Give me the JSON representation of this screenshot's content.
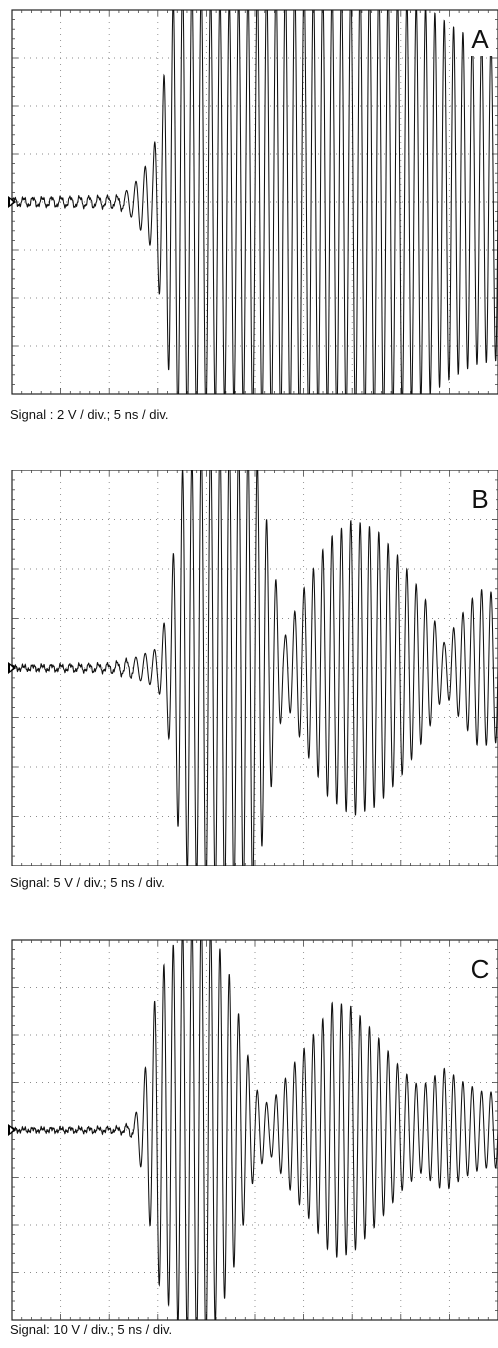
{
  "chart_data": [
    {
      "type": "line",
      "panel_label": "A",
      "caption": "Signal : 2 V / div.; 5 ns / div.",
      "grid": true,
      "divisions": {
        "x": 10,
        "y": 8
      },
      "xlim": [
        0,
        10
      ],
      "ylim": [
        -4,
        4
      ],
      "envelope": {
        "x": [
          0,
          2.2,
          2.5,
          2.9,
          3.1,
          3.3,
          3.5,
          3.7,
          4.0,
          4.5,
          5.0,
          5.5,
          6.0,
          6.5,
          7.0,
          7.5,
          8.0,
          8.5,
          9.0,
          9.5,
          10.0
        ],
        "amplitude_div": [
          0.08,
          0.12,
          0.35,
          1.0,
          2.4,
          4.2,
          4.6,
          4.6,
          4.4,
          4.2,
          4.5,
          4.6,
          4.6,
          4.4,
          4.5,
          4.6,
          4.3,
          4.1,
          3.7,
          3.4,
          3.3
        ]
      },
      "cycles_per_div": 5.2
    },
    {
      "type": "line",
      "panel_label": "B",
      "caption": "Signal: 5 V / div.; 5 ns / div.",
      "grid": true,
      "divisions": {
        "x": 10,
        "y": 8
      },
      "xlim": [
        0,
        10
      ],
      "ylim": [
        -4,
        4
      ],
      "envelope": {
        "x": [
          0,
          2.0,
          2.5,
          3.0,
          3.2,
          3.5,
          4.0,
          4.5,
          5.0,
          5.4,
          5.6,
          6.0,
          6.5,
          7.0,
          7.5,
          8.0,
          8.5,
          8.9,
          9.2,
          9.6,
          10.0
        ],
        "amplitude_div": [
          0.04,
          0.08,
          0.2,
          0.4,
          1.2,
          4.0,
          4.6,
          4.6,
          4.5,
          2.0,
          0.6,
          1.6,
          2.6,
          3.0,
          2.8,
          2.2,
          1.4,
          0.5,
          1.0,
          1.6,
          1.5
        ]
      },
      "cycles_per_div": 5.2
    },
    {
      "type": "line",
      "panel_label": "C",
      "caption": "Signal: 10 V / div.; 5 ns / div.",
      "grid": true,
      "divisions": {
        "x": 10,
        "y": 8
      },
      "xlim": [
        0,
        10
      ],
      "ylim": [
        -4,
        4
      ],
      "envelope": {
        "x": [
          0,
          2.2,
          2.5,
          2.7,
          3.0,
          3.5,
          4.0,
          4.5,
          5.0,
          5.3,
          5.8,
          6.2,
          6.6,
          7.0,
          7.5,
          8.0,
          8.4,
          8.9,
          9.3,
          9.7,
          10.0
        ],
        "amplitude_div": [
          0.03,
          0.05,
          0.15,
          1.0,
          3.2,
          4.3,
          4.6,
          3.2,
          0.9,
          0.5,
          1.4,
          2.0,
          2.7,
          2.6,
          2.0,
          1.3,
          0.9,
          1.3,
          1.0,
          0.8,
          0.8
        ]
      },
      "cycles_per_div": 5.2
    }
  ]
}
